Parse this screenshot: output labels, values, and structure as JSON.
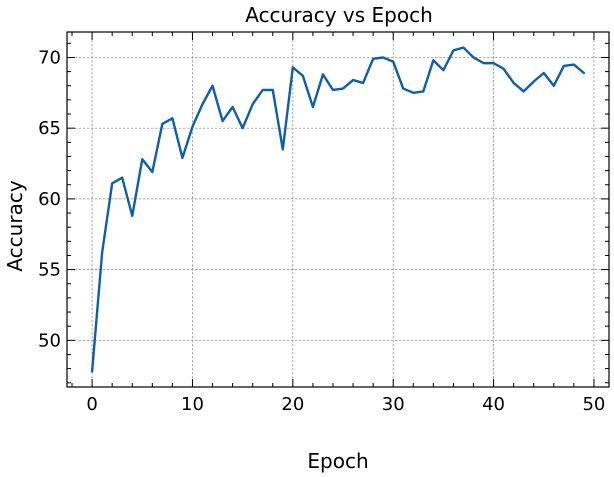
{
  "chart_data": {
    "type": "line",
    "title": "Accuracy vs Epoch",
    "xlabel": "Epoch",
    "ylabel": "Accuracy",
    "xlim": [
      -2.5,
      51.5
    ],
    "ylim": [
      46.7,
      71.8
    ],
    "xticks": [
      0,
      10,
      20,
      30,
      40,
      50
    ],
    "yticks": [
      50,
      55,
      60,
      65,
      70
    ],
    "x_minor_step": 2,
    "y_minor_step": 1,
    "grid": true,
    "tick_direction": "in",
    "series": [
      {
        "color": "#0f5fa8",
        "x": [
          0,
          1,
          2,
          3,
          4,
          5,
          6,
          7,
          8,
          9,
          10,
          11,
          12,
          13,
          14,
          15,
          16,
          17,
          18,
          19,
          20,
          21,
          22,
          23,
          24,
          25,
          26,
          27,
          28,
          29,
          30,
          31,
          32,
          33,
          34,
          35,
          36,
          37,
          38,
          39,
          40,
          41,
          42,
          43,
          44,
          45,
          46,
          47,
          48,
          49
        ],
        "y": [
          47.8,
          56.2,
          61.1,
          61.5,
          58.8,
          62.8,
          61.9,
          65.3,
          65.7,
          62.9,
          65.1,
          66.7,
          68.0,
          65.5,
          66.5,
          65.0,
          66.7,
          67.7,
          67.7,
          63.5,
          69.3,
          68.7,
          66.5,
          68.8,
          67.7,
          67.8,
          68.4,
          68.2,
          69.9,
          70.0,
          69.7,
          67.8,
          67.5,
          67.6,
          69.8,
          69.1,
          70.5,
          70.7,
          70.0,
          69.6,
          69.6,
          69.2,
          68.2,
          67.6,
          68.3,
          68.9,
          68.0,
          69.4,
          69.5,
          68.9
        ]
      }
    ]
  }
}
